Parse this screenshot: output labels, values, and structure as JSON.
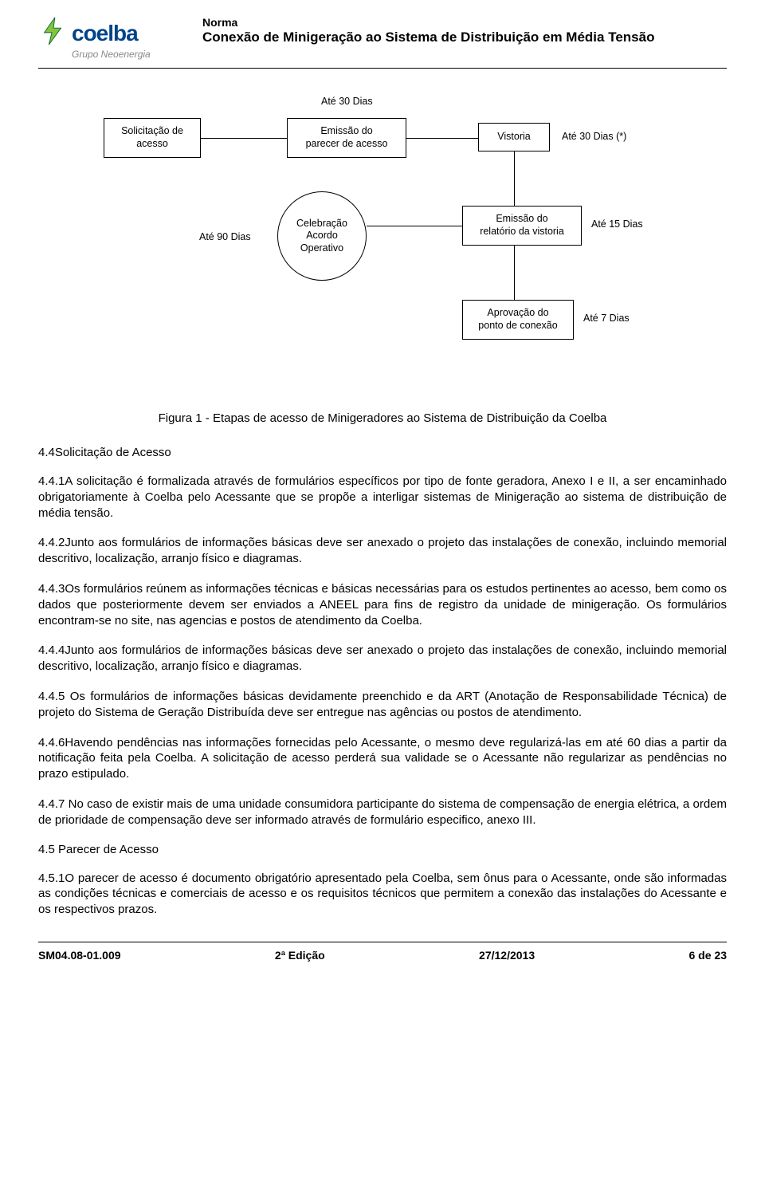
{
  "header": {
    "norma_label": "Norma",
    "title": "Conexão de Minigeração ao Sistema de Distribuição em Média Tensão",
    "logo_main": "coelba",
    "logo_sub": "Grupo Neoenergia"
  },
  "flowchart": {
    "boxes": {
      "solicitacao": "Solicitação de\nacesso",
      "emissao_parecer": "Emissão do\nparecer de acesso",
      "vistoria": "Vistoria",
      "emissao_relatorio": "Emissão do\nrelatório da vistoria",
      "aprovacao": "Aprovação do\nponto de conexão"
    },
    "circle": "Celebração\nAcordo\nOperativo",
    "labels": {
      "ate30": "Até 30 Dias",
      "ate30s": "Até 30 Dias (*)",
      "ate15": "Até 15 Dias",
      "ate7": "Até 7 Dias",
      "ate90": "Até 90 Dias"
    }
  },
  "caption": "Figura 1 - Etapas de acesso de Minigeradores ao Sistema de Distribuição da Coelba",
  "sections": {
    "s44": "4.4Solicitação de Acesso",
    "p441": "4.4.1A solicitação é formalizada através de formulários específicos por tipo de fonte geradora, Anexo I e II, a ser encaminhado obrigatoriamente à Coelba pelo Acessante que se propõe a interligar sistemas de Minigeração ao sistema de distribuição de média tensão.",
    "p442": "4.4.2Junto aos formulários de informações básicas deve ser anexado o projeto das instalações de conexão, incluindo memorial descritivo, localização, arranjo físico e diagramas.",
    "p443": "4.4.3Os formulários reúnem as informações técnicas e básicas necessárias para os estudos pertinentes ao acesso, bem como os dados que posteriormente devem ser enviados a ANEEL para fins de registro da unidade de minigeração. Os formulários encontram-se no site, nas agencias e postos de atendimento da Coelba.",
    "p444": "4.4.4Junto aos formulários de informações básicas deve ser anexado o projeto das instalações de conexão, incluindo memorial descritivo, localização, arranjo físico e diagramas.",
    "p445": "4.4.5 Os formulários de informações básicas devidamente preenchido e da ART (Anotação de Responsabilidade Técnica) de projeto do Sistema de Geração Distribuída deve ser entregue nas agências ou postos de atendimento.",
    "p446": "4.4.6Havendo pendências nas informações fornecidas pelo Acessante, o mesmo deve regularizá-las em até 60 dias a partir da notificação feita pela Coelba. A solicitação de acesso perderá sua validade se o Acessante não regularizar as pendências no prazo estipulado.",
    "p447": "4.4.7 No caso de existir mais de uma unidade consumidora participante do sistema de compensação de energia elétrica, a ordem de prioridade de compensação deve ser informado através de formulário especifico, anexo III.",
    "s45": "4.5 Parecer de Acesso",
    "p451": "4.5.1O parecer de acesso é documento obrigatório apresentado pela Coelba, sem ônus para o Acessante, onde são informadas as condições técnicas e comerciais de acesso e os requisitos técnicos que permitem a conexão das instalações do Acessante e os respectivos prazos."
  },
  "footer": {
    "doc_code": "SM04.08-01.009",
    "edition": "2ª Edição",
    "date": "27/12/2013",
    "page": "6 de 23"
  }
}
